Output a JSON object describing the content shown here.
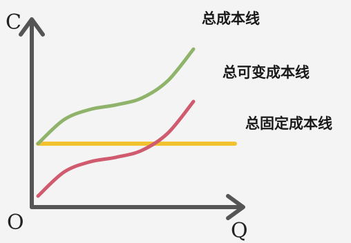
{
  "chart_data": {
    "type": "line",
    "y_axis_letter": "C",
    "x_axis_letter": "Q",
    "origin_label": "O",
    "series": [
      {
        "name": "总成本线",
        "color": "#8fb36a",
        "x": [
          0,
          1,
          2,
          3,
          4,
          5,
          6
        ],
        "y": [
          4.6,
          6.7,
          7.6,
          8.0,
          8.6,
          10.1,
          12.9
        ]
      },
      {
        "name": "总可变成本线",
        "color": "#d05a6e",
        "x": [
          0,
          1,
          2,
          3,
          4,
          5,
          6
        ],
        "y": [
          0.0,
          2.1,
          3.0,
          3.4,
          4.0,
          5.5,
          8.3
        ]
      },
      {
        "name": "总固定成本线",
        "color": "#f2c22e",
        "x": [
          0,
          7.6
        ],
        "y": [
          4.6,
          4.6
        ]
      }
    ],
    "xlim": [
      0,
      8
    ],
    "ylim": [
      0,
      14
    ]
  }
}
